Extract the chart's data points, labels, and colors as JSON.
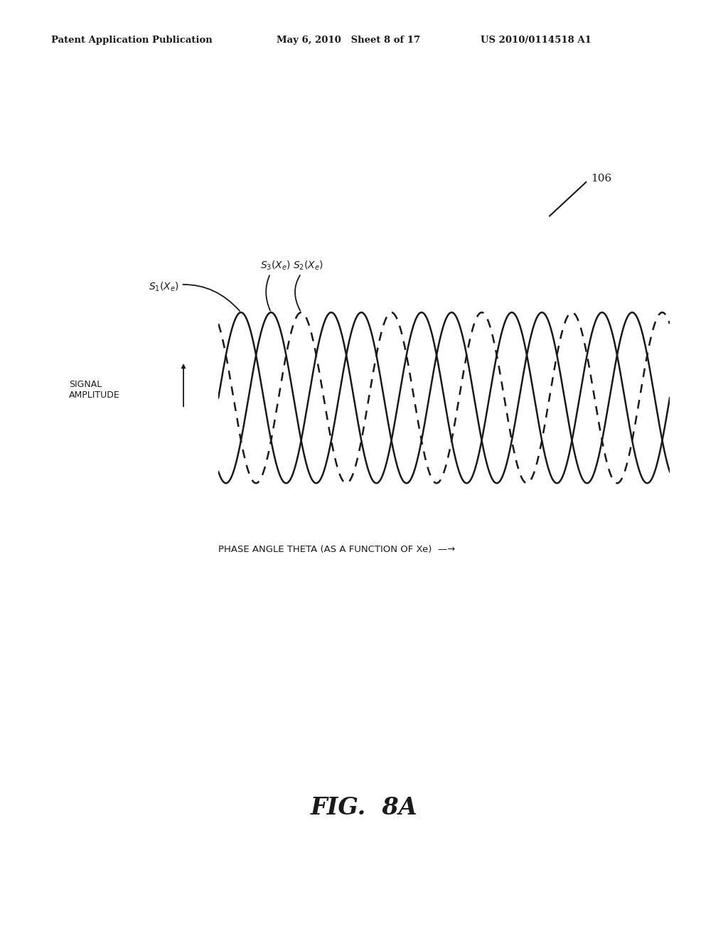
{
  "header_left": "Patent Application Publication",
  "header_mid": "May 6, 2010   Sheet 8 of 17",
  "header_right": "US 2010/0114518 A1",
  "figure_label": "FIG. 8A",
  "ref_number": "106",
  "ylabel": "SIGNAL\nAMPLITUDE",
  "xlabel": "PHASE ANGLE THETA (AS A FUNCTION OF Xe)",
  "bg_color": "#ffffff",
  "line_color": "#1a1a1a",
  "n_cycles": 5,
  "phase_shift_deg": 120
}
